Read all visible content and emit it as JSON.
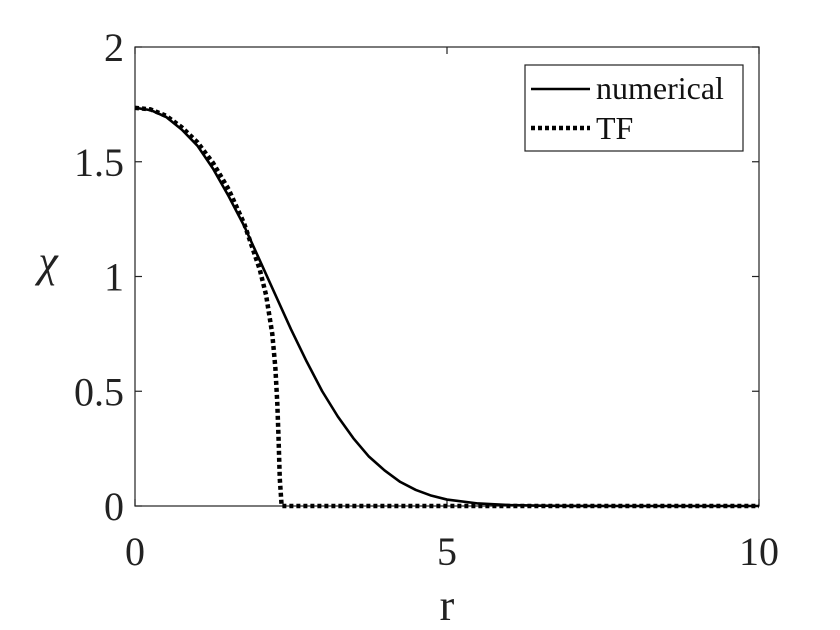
{
  "chart_data": {
    "type": "line",
    "xlabel": "r",
    "ylabel": "χ",
    "xlim": [
      0,
      10
    ],
    "ylim": [
      0,
      2
    ],
    "xticks": [
      0,
      5,
      10
    ],
    "yticks": [
      0,
      0.5,
      1,
      1.5,
      2
    ],
    "xtick_labels": [
      "0",
      "5",
      "10"
    ],
    "ytick_labels": [
      "0",
      "0.5",
      "1",
      "1.5",
      "2"
    ],
    "grid": false,
    "legend_position": "top-right",
    "series": [
      {
        "name": "numerical",
        "style": "solid",
        "color": "#000000",
        "x": [
          0,
          0.25,
          0.5,
          0.75,
          1.0,
          1.25,
          1.5,
          1.75,
          2.0,
          2.25,
          2.5,
          2.75,
          3.0,
          3.25,
          3.5,
          3.75,
          4.0,
          4.25,
          4.5,
          4.75,
          5.0,
          5.5,
          6.0,
          6.5,
          7.0,
          8.0,
          9.0,
          10.0
        ],
        "y": [
          1.735,
          1.725,
          1.695,
          1.64,
          1.57,
          1.47,
          1.35,
          1.22,
          1.07,
          0.92,
          0.77,
          0.63,
          0.5,
          0.39,
          0.295,
          0.215,
          0.155,
          0.105,
          0.07,
          0.045,
          0.028,
          0.011,
          0.004,
          0.0015,
          0.0005,
          0.0,
          0.0,
          0.0
        ]
      },
      {
        "name": "TF",
        "style": "dotted",
        "color": "#000000",
        "x": [
          0,
          0.25,
          0.5,
          0.75,
          1.0,
          1.25,
          1.5,
          1.75,
          2.0,
          2.1,
          2.2,
          2.25,
          2.28,
          2.3,
          2.32,
          2.35,
          2.45,
          3.0,
          5.0,
          7.5,
          10.0
        ],
        "y": [
          1.735,
          1.728,
          1.7,
          1.65,
          1.585,
          1.495,
          1.38,
          1.23,
          1.03,
          0.92,
          0.75,
          0.6,
          0.45,
          0.3,
          0.12,
          0.0,
          0.0,
          0.0,
          0.0,
          0.0,
          0.0
        ]
      }
    ]
  }
}
